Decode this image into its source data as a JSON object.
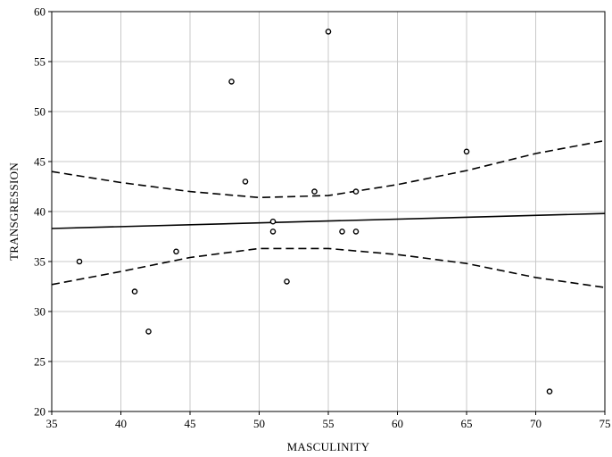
{
  "chart_data": {
    "type": "scatter",
    "title": "",
    "xlabel": "MASCULINITY",
    "ylabel": "TRANSGRESSION",
    "xlim": [
      35,
      75
    ],
    "ylim": [
      20,
      60
    ],
    "xticks": [
      35,
      40,
      45,
      50,
      55,
      60,
      65,
      70,
      75
    ],
    "yticks": [
      20,
      25,
      30,
      35,
      40,
      45,
      50,
      55,
      60
    ],
    "grid": true,
    "points": [
      {
        "x": 37,
        "y": 35
      },
      {
        "x": 41,
        "y": 32
      },
      {
        "x": 42,
        "y": 28
      },
      {
        "x": 44,
        "y": 36
      },
      {
        "x": 48,
        "y": 53
      },
      {
        "x": 49,
        "y": 43
      },
      {
        "x": 51,
        "y": 39
      },
      {
        "x": 51,
        "y": 38
      },
      {
        "x": 52,
        "y": 33
      },
      {
        "x": 54,
        "y": 42
      },
      {
        "x": 55,
        "y": 58
      },
      {
        "x": 56,
        "y": 38
      },
      {
        "x": 57,
        "y": 38
      },
      {
        "x": 57,
        "y": 42
      },
      {
        "x": 65,
        "y": 46
      },
      {
        "x": 71,
        "y": 22
      }
    ],
    "regression_line": [
      {
        "x": 35,
        "y": 38.3
      },
      {
        "x": 75,
        "y": 39.8
      }
    ],
    "confidence_upper": [
      {
        "x": 35,
        "y": 44.0
      },
      {
        "x": 40,
        "y": 42.9
      },
      {
        "x": 45,
        "y": 42.0
      },
      {
        "x": 50,
        "y": 41.4
      },
      {
        "x": 55,
        "y": 41.6
      },
      {
        "x": 60,
        "y": 42.7
      },
      {
        "x": 65,
        "y": 44.1
      },
      {
        "x": 70,
        "y": 45.8
      },
      {
        "x": 75,
        "y": 47.1
      }
    ],
    "confidence_lower": [
      {
        "x": 35,
        "y": 32.7
      },
      {
        "x": 40,
        "y": 34.0
      },
      {
        "x": 45,
        "y": 35.4
      },
      {
        "x": 50,
        "y": 36.3
      },
      {
        "x": 55,
        "y": 36.3
      },
      {
        "x": 60,
        "y": 35.7
      },
      {
        "x": 65,
        "y": 34.8
      },
      {
        "x": 70,
        "y": 33.4
      },
      {
        "x": 75,
        "y": 32.4
      }
    ]
  }
}
